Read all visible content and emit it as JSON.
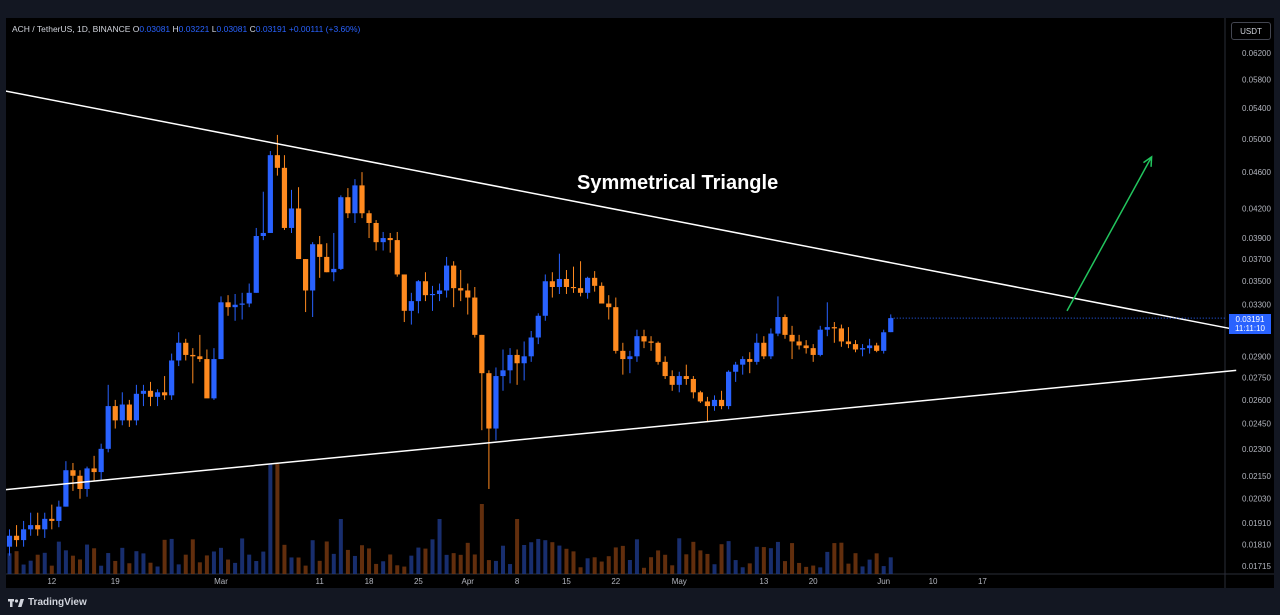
{
  "header": {
    "symbol": "ACH / TetherUS, 1D, BINANCE",
    "o_label": "O",
    "o_value": "0.03081",
    "h_label": "H",
    "h_value": "0.03221",
    "l_label": "L",
    "l_value": "0.03081",
    "c_label": "C",
    "c_value": "0.03191",
    "change": "+0.00111 (+3.60%)"
  },
  "currency_button": "USDT",
  "price_tag": {
    "price": "0.03191",
    "countdown": "11:11:10"
  },
  "annotation": "Symmetrical Triangle",
  "footer": {
    "logo_icon": "tradingview-logo-icon",
    "brand": "TradingView"
  },
  "colors": {
    "up": "#2962ff",
    "down": "#ff8a1f",
    "background": "#000000",
    "panel": "#131722",
    "trendline": "#ffffff",
    "arrow": "#22c55e"
  },
  "chart_data": {
    "type": "candlestick",
    "x_tick_labels": [
      "12",
      "19",
      "Mar",
      "11",
      "18",
      "25",
      "Apr",
      "8",
      "15",
      "22",
      "May",
      "13",
      "20",
      "Jun",
      "10",
      "17"
    ],
    "y_tick_labels": [
      "0.06200",
      "0.05800",
      "0.05400",
      "0.05000",
      "0.04600",
      "0.04200",
      "0.03900",
      "0.03700",
      "0.03500",
      "0.03300",
      "0.03100",
      "0.02900",
      "0.02750",
      "0.02600",
      "0.02450",
      "0.02300",
      "0.02150",
      "0.02030",
      "0.01910",
      "0.01810",
      "0.01715"
    ],
    "scale": "log",
    "last_price": 0.03191,
    "candles": [
      {
        "o": 0.018,
        "h": 0.0188,
        "l": 0.0176,
        "c": 0.0185
      },
      {
        "o": 0.0185,
        "h": 0.019,
        "l": 0.018,
        "c": 0.0183
      },
      {
        "o": 0.0183,
        "h": 0.0192,
        "l": 0.018,
        "c": 0.0188
      },
      {
        "o": 0.0188,
        "h": 0.0196,
        "l": 0.0185,
        "c": 0.019
      },
      {
        "o": 0.019,
        "h": 0.0196,
        "l": 0.0185,
        "c": 0.0188
      },
      {
        "o": 0.0188,
        "h": 0.0196,
        "l": 0.0184,
        "c": 0.0193
      },
      {
        "o": 0.0193,
        "h": 0.02,
        "l": 0.0188,
        "c": 0.0192
      },
      {
        "o": 0.0192,
        "h": 0.0202,
        "l": 0.0189,
        "c": 0.0199
      },
      {
        "o": 0.0199,
        "h": 0.0223,
        "l": 0.0199,
        "c": 0.0218
      },
      {
        "o": 0.0218,
        "h": 0.0222,
        "l": 0.0207,
        "c": 0.0215
      },
      {
        "o": 0.0215,
        "h": 0.0218,
        "l": 0.0203,
        "c": 0.0208
      },
      {
        "o": 0.0208,
        "h": 0.022,
        "l": 0.0204,
        "c": 0.0219
      },
      {
        "o": 0.0219,
        "h": 0.0226,
        "l": 0.0212,
        "c": 0.0217
      },
      {
        "o": 0.0217,
        "h": 0.0233,
        "l": 0.0213,
        "c": 0.023
      },
      {
        "o": 0.023,
        "h": 0.027,
        "l": 0.0228,
        "c": 0.0256
      },
      {
        "o": 0.0256,
        "h": 0.026,
        "l": 0.0242,
        "c": 0.0247
      },
      {
        "o": 0.0247,
        "h": 0.0265,
        "l": 0.0244,
        "c": 0.0257
      },
      {
        "o": 0.0257,
        "h": 0.026,
        "l": 0.0243,
        "c": 0.0247
      },
      {
        "o": 0.0247,
        "h": 0.027,
        "l": 0.0244,
        "c": 0.0264
      },
      {
        "o": 0.0264,
        "h": 0.027,
        "l": 0.0256,
        "c": 0.0266
      },
      {
        "o": 0.0266,
        "h": 0.0272,
        "l": 0.0256,
        "c": 0.0262
      },
      {
        "o": 0.0262,
        "h": 0.0267,
        "l": 0.0256,
        "c": 0.0265
      },
      {
        "o": 0.0265,
        "h": 0.0276,
        "l": 0.026,
        "c": 0.0263
      },
      {
        "o": 0.0263,
        "h": 0.0292,
        "l": 0.026,
        "c": 0.0287
      },
      {
        "o": 0.0287,
        "h": 0.0308,
        "l": 0.0283,
        "c": 0.03
      },
      {
        "o": 0.03,
        "h": 0.0303,
        "l": 0.0287,
        "c": 0.0291
      },
      {
        "o": 0.0291,
        "h": 0.0296,
        "l": 0.0271,
        "c": 0.029
      },
      {
        "o": 0.029,
        "h": 0.0306,
        "l": 0.0286,
        "c": 0.0288
      },
      {
        "o": 0.0288,
        "h": 0.0295,
        "l": 0.0262,
        "c": 0.0261
      },
      {
        "o": 0.0261,
        "h": 0.0296,
        "l": 0.026,
        "c": 0.0288
      },
      {
        "o": 0.0288,
        "h": 0.0337,
        "l": 0.0288,
        "c": 0.0332
      },
      {
        "o": 0.0332,
        "h": 0.0338,
        "l": 0.0321,
        "c": 0.0328
      },
      {
        "o": 0.0328,
        "h": 0.0339,
        "l": 0.0317,
        "c": 0.033
      },
      {
        "o": 0.033,
        "h": 0.034,
        "l": 0.0318,
        "c": 0.0331
      },
      {
        "o": 0.0331,
        "h": 0.0348,
        "l": 0.0328,
        "c": 0.034
      },
      {
        "o": 0.034,
        "h": 0.04,
        "l": 0.034,
        "c": 0.0392
      },
      {
        "o": 0.0392,
        "h": 0.0438,
        "l": 0.0388,
        "c": 0.0395
      },
      {
        "o": 0.0395,
        "h": 0.0485,
        "l": 0.0395,
        "c": 0.048
      },
      {
        "o": 0.048,
        "h": 0.0505,
        "l": 0.0456,
        "c": 0.0465
      },
      {
        "o": 0.0465,
        "h": 0.048,
        "l": 0.0398,
        "c": 0.04
      },
      {
        "o": 0.04,
        "h": 0.044,
        "l": 0.0395,
        "c": 0.042
      },
      {
        "o": 0.042,
        "h": 0.0443,
        "l": 0.037,
        "c": 0.037
      },
      {
        "o": 0.037,
        "h": 0.037,
        "l": 0.0324,
        "c": 0.0342
      },
      {
        "o": 0.0342,
        "h": 0.0386,
        "l": 0.032,
        "c": 0.0384
      },
      {
        "o": 0.0384,
        "h": 0.0392,
        "l": 0.0353,
        "c": 0.0372
      },
      {
        "o": 0.0372,
        "h": 0.0385,
        "l": 0.0358,
        "c": 0.0358
      },
      {
        "o": 0.0358,
        "h": 0.0395,
        "l": 0.035,
        "c": 0.0361
      },
      {
        "o": 0.0361,
        "h": 0.0434,
        "l": 0.036,
        "c": 0.0432
      },
      {
        "o": 0.0432,
        "h": 0.0442,
        "l": 0.041,
        "c": 0.0415
      },
      {
        "o": 0.0415,
        "h": 0.0452,
        "l": 0.0405,
        "c": 0.0445
      },
      {
        "o": 0.0445,
        "h": 0.046,
        "l": 0.041,
        "c": 0.0415
      },
      {
        "o": 0.0415,
        "h": 0.0418,
        "l": 0.039,
        "c": 0.0405
      },
      {
        "o": 0.0405,
        "h": 0.0408,
        "l": 0.0378,
        "c": 0.0386
      },
      {
        "o": 0.0386,
        "h": 0.0396,
        "l": 0.0378,
        "c": 0.039
      },
      {
        "o": 0.039,
        "h": 0.0395,
        "l": 0.0376,
        "c": 0.0388
      },
      {
        "o": 0.0388,
        "h": 0.0396,
        "l": 0.0354,
        "c": 0.0356
      },
      {
        "o": 0.0356,
        "h": 0.0356,
        "l": 0.0316,
        "c": 0.0325
      },
      {
        "o": 0.0325,
        "h": 0.034,
        "l": 0.0314,
        "c": 0.0333
      },
      {
        "o": 0.0333,
        "h": 0.0351,
        "l": 0.0323,
        "c": 0.035
      },
      {
        "o": 0.035,
        "h": 0.0358,
        "l": 0.0333,
        "c": 0.0338
      },
      {
        "o": 0.0338,
        "h": 0.0346,
        "l": 0.0325,
        "c": 0.0339
      },
      {
        "o": 0.0339,
        "h": 0.0348,
        "l": 0.0333,
        "c": 0.0342
      },
      {
        "o": 0.0342,
        "h": 0.0372,
        "l": 0.0336,
        "c": 0.0364
      },
      {
        "o": 0.0364,
        "h": 0.0368,
        "l": 0.0328,
        "c": 0.0344
      },
      {
        "o": 0.0344,
        "h": 0.036,
        "l": 0.0333,
        "c": 0.0342
      },
      {
        "o": 0.0342,
        "h": 0.0348,
        "l": 0.0322,
        "c": 0.0336
      },
      {
        "o": 0.0336,
        "h": 0.0345,
        "l": 0.0304,
        "c": 0.0306
      },
      {
        "o": 0.0306,
        "h": 0.0306,
        "l": 0.0241,
        "c": 0.0278
      },
      {
        "o": 0.0278,
        "h": 0.028,
        "l": 0.0208,
        "c": 0.0242
      },
      {
        "o": 0.0242,
        "h": 0.0282,
        "l": 0.0235,
        "c": 0.0276
      },
      {
        "o": 0.0276,
        "h": 0.0295,
        "l": 0.0266,
        "c": 0.028
      },
      {
        "o": 0.028,
        "h": 0.0296,
        "l": 0.0271,
        "c": 0.0291
      },
      {
        "o": 0.0291,
        "h": 0.0295,
        "l": 0.027,
        "c": 0.0285
      },
      {
        "o": 0.0285,
        "h": 0.0301,
        "l": 0.0273,
        "c": 0.029
      },
      {
        "o": 0.029,
        "h": 0.0309,
        "l": 0.0286,
        "c": 0.0304
      },
      {
        "o": 0.0304,
        "h": 0.0323,
        "l": 0.0299,
        "c": 0.0321
      },
      {
        "o": 0.0321,
        "h": 0.0356,
        "l": 0.0317,
        "c": 0.035
      },
      {
        "o": 0.035,
        "h": 0.0358,
        "l": 0.0336,
        "c": 0.0345
      },
      {
        "o": 0.0345,
        "h": 0.0375,
        "l": 0.0339,
        "c": 0.0352
      },
      {
        "o": 0.0352,
        "h": 0.036,
        "l": 0.0339,
        "c": 0.0345
      },
      {
        "o": 0.0345,
        "h": 0.0363,
        "l": 0.034,
        "c": 0.0344
      },
      {
        "o": 0.0344,
        "h": 0.0368,
        "l": 0.0337,
        "c": 0.034
      },
      {
        "o": 0.034,
        "h": 0.0354,
        "l": 0.0335,
        "c": 0.0353
      },
      {
        "o": 0.0353,
        "h": 0.0359,
        "l": 0.0341,
        "c": 0.0346
      },
      {
        "o": 0.0346,
        "h": 0.0349,
        "l": 0.0332,
        "c": 0.0331
      },
      {
        "o": 0.0331,
        "h": 0.0338,
        "l": 0.0318,
        "c": 0.0328
      },
      {
        "o": 0.0328,
        "h": 0.0336,
        "l": 0.0292,
        "c": 0.0294
      },
      {
        "o": 0.0294,
        "h": 0.03,
        "l": 0.0277,
        "c": 0.0288
      },
      {
        "o": 0.0288,
        "h": 0.0294,
        "l": 0.0278,
        "c": 0.029
      },
      {
        "o": 0.029,
        "h": 0.031,
        "l": 0.0286,
        "c": 0.0305
      },
      {
        "o": 0.0305,
        "h": 0.031,
        "l": 0.0296,
        "c": 0.0301
      },
      {
        "o": 0.0301,
        "h": 0.0305,
        "l": 0.0294,
        "c": 0.03
      },
      {
        "o": 0.03,
        "h": 0.0301,
        "l": 0.0284,
        "c": 0.0286
      },
      {
        "o": 0.0286,
        "h": 0.029,
        "l": 0.0274,
        "c": 0.0276
      },
      {
        "o": 0.0276,
        "h": 0.028,
        "l": 0.0266,
        "c": 0.027
      },
      {
        "o": 0.027,
        "h": 0.0279,
        "l": 0.0265,
        "c": 0.0276
      },
      {
        "o": 0.0276,
        "h": 0.0284,
        "l": 0.027,
        "c": 0.0274
      },
      {
        "o": 0.0274,
        "h": 0.0276,
        "l": 0.0261,
        "c": 0.0265
      },
      {
        "o": 0.0265,
        "h": 0.0266,
        "l": 0.0258,
        "c": 0.0259
      },
      {
        "o": 0.0259,
        "h": 0.0262,
        "l": 0.0246,
        "c": 0.0256
      },
      {
        "o": 0.0256,
        "h": 0.0263,
        "l": 0.0253,
        "c": 0.026
      },
      {
        "o": 0.026,
        "h": 0.0266,
        "l": 0.0254,
        "c": 0.0256
      },
      {
        "o": 0.0256,
        "h": 0.028,
        "l": 0.0254,
        "c": 0.0279
      },
      {
        "o": 0.0279,
        "h": 0.0286,
        "l": 0.0272,
        "c": 0.0284
      },
      {
        "o": 0.0284,
        "h": 0.029,
        "l": 0.0277,
        "c": 0.0288
      },
      {
        "o": 0.0288,
        "h": 0.0293,
        "l": 0.0278,
        "c": 0.0286
      },
      {
        "o": 0.0286,
        "h": 0.0307,
        "l": 0.0284,
        "c": 0.03
      },
      {
        "o": 0.03,
        "h": 0.0305,
        "l": 0.0288,
        "c": 0.029
      },
      {
        "o": 0.029,
        "h": 0.0311,
        "l": 0.0288,
        "c": 0.0307
      },
      {
        "o": 0.0307,
        "h": 0.0337,
        "l": 0.0305,
        "c": 0.032
      },
      {
        "o": 0.032,
        "h": 0.0322,
        "l": 0.0303,
        "c": 0.0306
      },
      {
        "o": 0.0306,
        "h": 0.0313,
        "l": 0.0288,
        "c": 0.0301
      },
      {
        "o": 0.0301,
        "h": 0.0306,
        "l": 0.0295,
        "c": 0.0298
      },
      {
        "o": 0.0298,
        "h": 0.0302,
        "l": 0.0292,
        "c": 0.0296
      },
      {
        "o": 0.0296,
        "h": 0.0299,
        "l": 0.0286,
        "c": 0.0291
      },
      {
        "o": 0.0291,
        "h": 0.0313,
        "l": 0.029,
        "c": 0.031
      },
      {
        "o": 0.031,
        "h": 0.0332,
        "l": 0.0305,
        "c": 0.0312
      },
      {
        "o": 0.0312,
        "h": 0.0316,
        "l": 0.03,
        "c": 0.0311
      },
      {
        "o": 0.0311,
        "h": 0.0314,
        "l": 0.0297,
        "c": 0.0301
      },
      {
        "o": 0.0301,
        "h": 0.0312,
        "l": 0.0296,
        "c": 0.0299
      },
      {
        "o": 0.0299,
        "h": 0.0302,
        "l": 0.0293,
        "c": 0.0295
      },
      {
        "o": 0.0295,
        "h": 0.0299,
        "l": 0.029,
        "c": 0.0296
      },
      {
        "o": 0.0296,
        "h": 0.0303,
        "l": 0.0292,
        "c": 0.0298
      },
      {
        "o": 0.0298,
        "h": 0.03,
        "l": 0.0293,
        "c": 0.0294
      },
      {
        "o": 0.0294,
        "h": 0.031,
        "l": 0.0292,
        "c": 0.0308
      },
      {
        "o": 0.03081,
        "h": 0.03221,
        "l": 0.03081,
        "c": 0.03191
      }
    ],
    "trendlines": [
      {
        "name": "upper",
        "x": [
          -11,
          174
        ],
        "price": [
          0.0584,
          0.031
        ]
      },
      {
        "name": "lower",
        "x": [
          -11,
          174
        ],
        "price": [
          0.0204,
          0.028
        ]
      }
    ],
    "arrow": {
      "x": [
        150,
        162
      ],
      "price": [
        0.0325,
        0.0478
      ]
    }
  }
}
